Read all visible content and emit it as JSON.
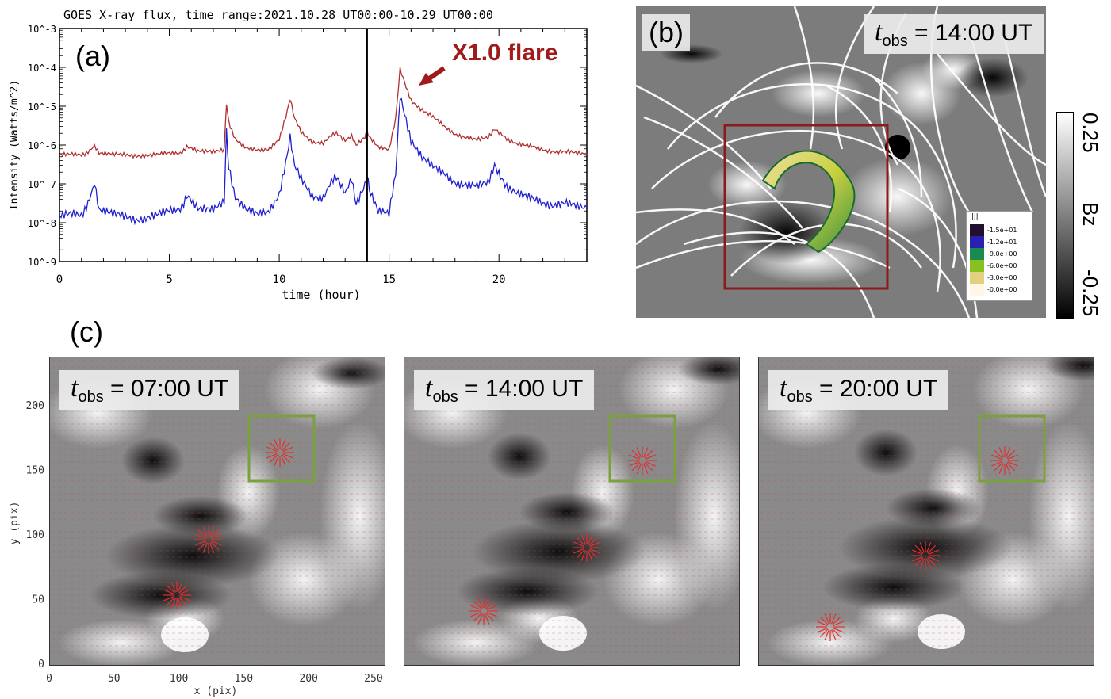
{
  "panel_a": {
    "letter": "(a)",
    "title": "GOES X-ray flux, time range:2021.10.28 UT00:00-10.29 UT00:00",
    "annotation": "X1.0 flare",
    "chart_data": {
      "type": "line",
      "title": "GOES X-ray flux, time range:2021.10.28 UT00:00-10.29 UT00:00",
      "xlabel": "time (hour)",
      "ylabel": "Intensity (Watts/m^2)",
      "xlim": [
        0,
        24
      ],
      "ylim": [
        1e-09,
        0.001
      ],
      "yscale": "log",
      "x_ticks": [
        0,
        5,
        10,
        15,
        20
      ],
      "y_ticks": [
        "10^-9",
        "10^-8",
        "10^-7",
        "10^-6",
        "10^-5",
        "10^-4",
        "10^-3"
      ],
      "vertical_line_x": 14,
      "series": [
        {
          "color": "#b03030",
          "x": [
            0,
            1,
            1.6,
            1.8,
            2.5,
            3.5,
            4.5,
            5.5,
            5.8,
            6.3,
            7.0,
            7.5,
            7.6,
            7.7,
            8.0,
            8.5,
            9.0,
            9.5,
            10.0,
            10.3,
            10.5,
            10.7,
            11.0,
            11.5,
            12.0,
            12.6,
            13.0,
            13.3,
            13.5,
            13.9,
            14.0,
            14.1,
            14.5,
            15.0,
            15.3,
            15.5,
            15.7,
            16.0,
            16.5,
            17.0,
            17.5,
            18.0,
            18.5,
            19.0,
            19.5,
            19.8,
            20.2,
            20.8,
            21.5,
            22.0,
            22.5,
            23.0,
            23.5,
            24.0
          ],
          "y": [
            5.5e-07,
            5.5e-07,
            9e-07,
            6e-07,
            5.5e-07,
            5.5e-07,
            5.5e-07,
            6.5e-07,
            9e-07,
            6.5e-07,
            6.5e-07,
            8e-07,
            1.2e-05,
            4e-06,
            1.5e-06,
            8e-07,
            7e-07,
            8e-07,
            1.5e-06,
            5e-06,
            1.5e-05,
            5e-06,
            2e-06,
            1.2e-06,
            1.2e-06,
            2e-06,
            1.2e-06,
            1.8e-06,
            1e-06,
            1.5e-06,
            2.5e-06,
            1.5e-06,
            9e-07,
            7e-07,
            5e-06,
            9e-05,
            4e-05,
            1.5e-05,
            8e-06,
            5e-06,
            3e-06,
            2e-06,
            1.6e-06,
            1.3e-06,
            1.5e-06,
            2.8e-06,
            1.8e-06,
            1e-06,
            9e-07,
            8e-07,
            7e-07,
            6.5e-07,
            6e-07,
            6e-07
          ]
        },
        {
          "color": "#2020d0",
          "x": [
            0,
            1,
            1.6,
            1.8,
            2.5,
            3.5,
            4.5,
            5.5,
            5.8,
            6.3,
            7.0,
            7.5,
            7.6,
            7.7,
            8.0,
            8.5,
            9.0,
            9.5,
            10.0,
            10.3,
            10.5,
            10.7,
            11.0,
            11.5,
            12.0,
            12.6,
            13.0,
            13.3,
            13.5,
            13.9,
            14.0,
            14.1,
            14.5,
            15.0,
            15.3,
            15.5,
            15.7,
            16.0,
            16.5,
            17.0,
            17.5,
            18.0,
            18.5,
            19.0,
            19.5,
            19.8,
            20.2,
            20.8,
            21.5,
            22.0,
            22.5,
            23.0,
            23.5,
            24.0
          ],
          "y": [
            1.5e-08,
            1.5e-08,
            9e-08,
            2e-08,
            1.5e-08,
            1.3e-08,
            1.5e-08,
            2.5e-08,
            5e-08,
            2e-08,
            2e-08,
            4e-08,
            2e-06,
            3e-07,
            5e-08,
            2e-08,
            1.5e-08,
            2e-08,
            6e-08,
            3e-07,
            1.5e-06,
            3e-07,
            1.2e-07,
            5e-08,
            5e-08,
            1.5e-07,
            5e-08,
            1.5e-07,
            3e-08,
            8e-08,
            2e-07,
            6e-08,
            2e-08,
            1.5e-08,
            2e-07,
            1.8e-05,
            6e-06,
            1.5e-06,
            5e-07,
            2.5e-07,
            1.8e-07,
            1.2e-07,
            1e-07,
            8e-08,
            1e-07,
            3.5e-07,
            1.2e-07,
            5e-08,
            4e-08,
            3.5e-08,
            3e-08,
            3e-08,
            2.5e-08,
            2.5e-08
          ]
        }
      ]
    }
  },
  "panel_b": {
    "letter": "(b)",
    "t_symbol": "t",
    "t_sub": "obs",
    "t_text": " = 14:00 UT",
    "colorbar_top": "0.25",
    "colorbar_label": "Bz",
    "colorbar_bottom": "-0.25",
    "legend_title": "|J|",
    "legend_values": [
      "1.5e+01",
      "1.2e+01",
      "9.0e+00",
      "6.0e+00",
      "3.0e+00",
      "0.0e+00"
    ],
    "legend_colors": [
      "#201030",
      "#2a20b0",
      "#1a8a50",
      "#88c020",
      "#e0d080",
      "#fff6e8"
    ],
    "box_color": "#8b1a1a"
  },
  "panel_c": {
    "letter": "(c)",
    "xlabel": "x (pix)",
    "ylabel": "y (pix)",
    "x_ticks": [
      "0",
      "50",
      "100",
      "150",
      "200",
      "250"
    ],
    "y_ticks": [
      "0",
      "50",
      "100",
      "150",
      "200"
    ],
    "box_color": "#7aa040",
    "frames": [
      {
        "t_symbol": "t",
        "t_sub": "obs",
        "t_text": " = 07:00 UT"
      },
      {
        "t_symbol": "t",
        "t_sub": "obs",
        "t_text": " = 14:00 UT"
      },
      {
        "t_symbol": "t",
        "t_sub": "obs",
        "t_text": " = 20:00 UT"
      }
    ]
  },
  "colors": {
    "flare_red": "#a01c1c",
    "arrow_red": "#e03030"
  }
}
